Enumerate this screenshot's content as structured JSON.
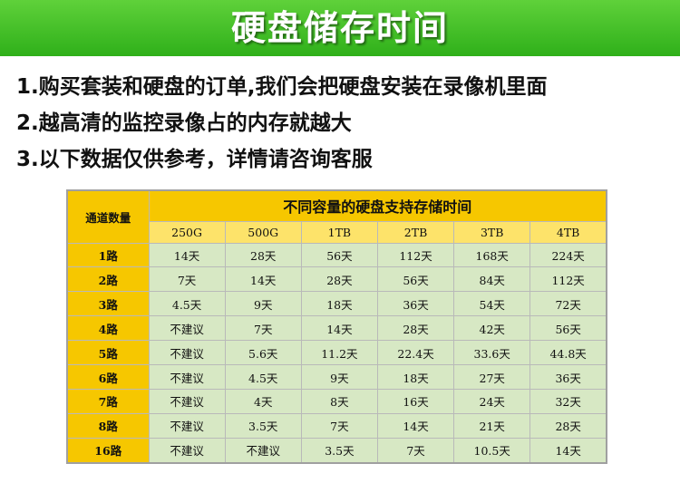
{
  "banner": {
    "title": "硬盘储存时间",
    "bg_color": "#3cbf25"
  },
  "notes": [
    "1.购买套装和硬盘的订单,我们会把硬盘安装在录像机里面",
    "2.越高清的监控录像占的内存就越大",
    "3.以下数据仅供参考，详情请咨询客服"
  ],
  "table": {
    "channel_header": "通道数量",
    "group_header": "不同容量的硬盘支持存储时间",
    "capacities": [
      "250G",
      "500G",
      "1TB",
      "2TB",
      "3TB",
      "4TB"
    ],
    "rows": [
      {
        "channel": "1路",
        "values": [
          "14天",
          "28天",
          "56天",
          "112天",
          "168天",
          "224天"
        ]
      },
      {
        "channel": "2路",
        "values": [
          "7天",
          "14天",
          "28天",
          "56天",
          "84天",
          "112天"
        ]
      },
      {
        "channel": "3路",
        "values": [
          "4.5天",
          "9天",
          "18天",
          "36天",
          "54天",
          "72天"
        ]
      },
      {
        "channel": "4路",
        "values": [
          "不建议",
          "7天",
          "14天",
          "28天",
          "42天",
          "56天"
        ]
      },
      {
        "channel": "5路",
        "values": [
          "不建议",
          "5.6天",
          "11.2天",
          "22.4天",
          "33.6天",
          "44.8天"
        ]
      },
      {
        "channel": "6路",
        "values": [
          "不建议",
          "4.5天",
          "9天",
          "18天",
          "27天",
          "36天"
        ]
      },
      {
        "channel": "7路",
        "values": [
          "不建议",
          "4天",
          "8天",
          "16天",
          "24天",
          "32天"
        ]
      },
      {
        "channel": "8路",
        "values": [
          "不建议",
          "3.5天",
          "7天",
          "14天",
          "21天",
          "28天"
        ]
      },
      {
        "channel": "16路",
        "values": [
          "不建议",
          "不建议",
          "3.5天",
          "7天",
          "10.5天",
          "14天"
        ]
      }
    ],
    "colors": {
      "header": "#f6c700",
      "subheader": "#fde36a",
      "cell": "#d7e8c4"
    }
  }
}
